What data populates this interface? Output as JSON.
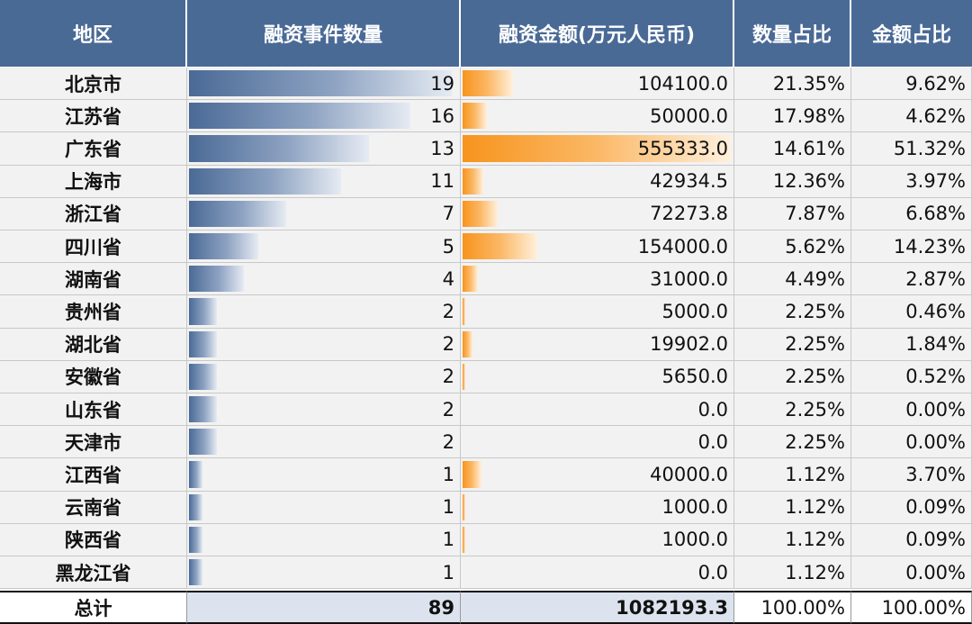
{
  "headers": [
    "地区",
    "融资事件数量",
    "融资金额(万元人民币)",
    "数量占比",
    "金额占比"
  ],
  "rows": [
    {
      "region": "北京市",
      "count": "19",
      "amount": "104100.0",
      "count_pct": "21.35%",
      "amount_pct": "9.62%"
    },
    {
      "region": "江苏省",
      "count": "16",
      "amount": "50000.0",
      "count_pct": "17.98%",
      "amount_pct": "4.62%"
    },
    {
      "region": "广东省",
      "count": "13",
      "amount": "555333.0",
      "count_pct": "14.61%",
      "amount_pct": "51.32%"
    },
    {
      "region": "上海市",
      "count": "11",
      "amount": "42934.5",
      "count_pct": "12.36%",
      "amount_pct": "3.97%"
    },
    {
      "region": "浙江省",
      "count": "7",
      "amount": "72273.8",
      "count_pct": "7.87%",
      "amount_pct": "6.68%"
    },
    {
      "region": "四川省",
      "count": "5",
      "amount": "154000.0",
      "count_pct": "5.62%",
      "amount_pct": "14.23%"
    },
    {
      "region": "湖南省",
      "count": "4",
      "amount": "31000.0",
      "count_pct": "4.49%",
      "amount_pct": "2.87%"
    },
    {
      "region": "贵州省",
      "count": "2",
      "amount": "5000.0",
      "count_pct": "2.25%",
      "amount_pct": "0.46%"
    },
    {
      "region": "湖北省",
      "count": "2",
      "amount": "19902.0",
      "count_pct": "2.25%",
      "amount_pct": "1.84%"
    },
    {
      "region": "安徽省",
      "count": "2",
      "amount": "5650.0",
      "count_pct": "2.25%",
      "amount_pct": "0.52%"
    },
    {
      "region": "山东省",
      "count": "2",
      "amount": "0.0",
      "count_pct": "2.25%",
      "amount_pct": "0.00%"
    },
    {
      "region": "天津市",
      "count": "2",
      "amount": "0.0",
      "count_pct": "2.25%",
      "amount_pct": "0.00%"
    },
    {
      "region": "江西省",
      "count": "1",
      "amount": "40000.0",
      "count_pct": "1.12%",
      "amount_pct": "3.70%"
    },
    {
      "region": "云南省",
      "count": "1",
      "amount": "1000.0",
      "count_pct": "1.12%",
      "amount_pct": "0.09%"
    },
    {
      "region": "陕西省",
      "count": "1",
      "amount": "1000.0",
      "count_pct": "1.12%",
      "amount_pct": "0.09%"
    },
    {
      "region": "黑龙江省",
      "count": "1",
      "amount": "0.0",
      "count_pct": "1.12%",
      "amount_pct": "0.00%"
    }
  ],
  "total": {
    "region": "总计",
    "count": "89",
    "amount": "1082193.3",
    "count_pct": "100.00%",
    "amount_pct": "100.00%"
  },
  "colors": {
    "header": "#4a6a96",
    "count_bar": "#4a6a96",
    "amount_bar": "#f7941d"
  }
}
